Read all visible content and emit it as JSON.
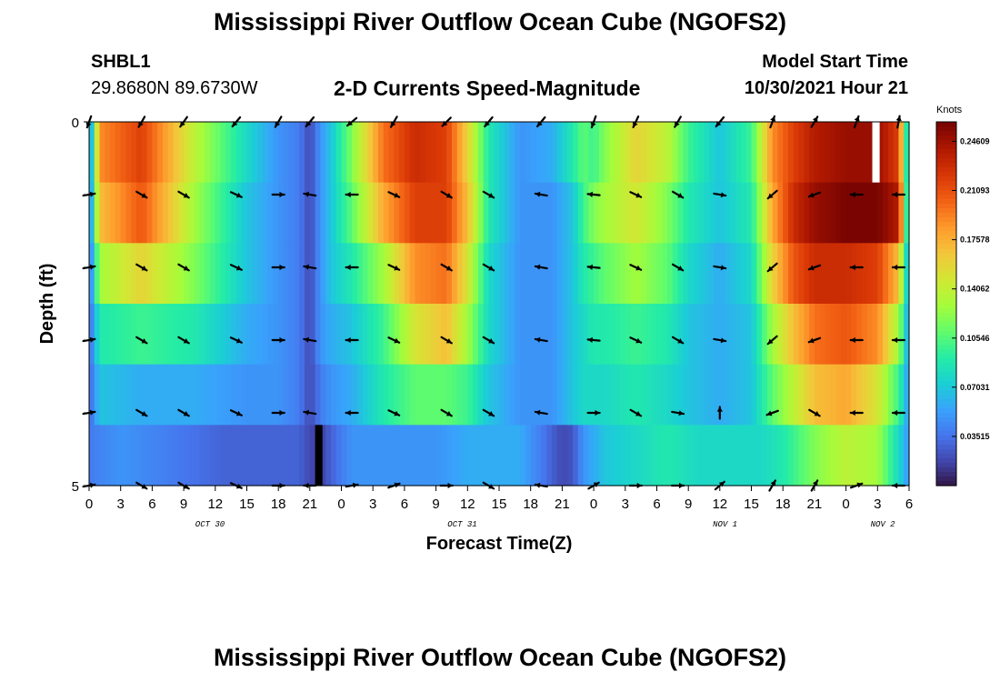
{
  "page": {
    "title": "Mississippi River Outflow Ocean Cube (NGOFS2)",
    "repeat_title": "Mississippi River Outflow Ocean Cube (NGOFS2)",
    "station": {
      "id": "SHBL1",
      "coords": "29.8680N  89.6730W"
    },
    "model_start": {
      "label": "Model Start Time",
      "value": "10/30/2021 Hour 21"
    }
  },
  "chart_data": {
    "type": "heatmap",
    "title": "2-D Currents Speed-Magnitude",
    "xlabel": "Forecast Time(Z)",
    "ylabel": "Depth (ft)",
    "y_tick_labels": [
      "0",
      "5"
    ],
    "ylim": [
      0,
      5
    ],
    "x_tick_labels": [
      "0",
      "3",
      "6",
      "9",
      "12",
      "15",
      "18",
      "21",
      "0",
      "3",
      "6",
      "9",
      "12",
      "15",
      "18",
      "21",
      "0",
      "3",
      "6",
      "9",
      "12",
      "15",
      "18",
      "21",
      "0",
      "3",
      "6"
    ],
    "x_range_hours": [
      0,
      78
    ],
    "day_labels": [
      "OCT 30",
      "OCT 31",
      "NOV 1",
      "NOV 2"
    ],
    "day_label_hours": [
      11.5,
      35.5,
      60.5,
      75.5
    ],
    "colorbar": {
      "unit": "Knots",
      "tick_labels": [
        "0.24609",
        "0.21093",
        "0.17578",
        "0.14062",
        "0.10546",
        "0.07031",
        "0.03515"
      ],
      "tick_values": [
        0.24609,
        0.21093,
        0.17578,
        0.14062,
        0.10546,
        0.07031,
        0.03515
      ],
      "range": [
        0.0,
        0.26
      ]
    },
    "depth_layers": 5,
    "speed_keyframes_hours": [
      0,
      1,
      5,
      10,
      15,
      18,
      20,
      21,
      22,
      23,
      25,
      28,
      31,
      34,
      36,
      38,
      41,
      44,
      46,
      47,
      48,
      49,
      52,
      55,
      57,
      60,
      63,
      65,
      67,
      69,
      72,
      75,
      77,
      78
    ],
    "speed_layers": [
      [
        0.03,
        0.19,
        0.22,
        0.14,
        0.08,
        0.05,
        0.04,
        0.02,
        0.05,
        0.07,
        0.12,
        0.2,
        0.23,
        0.22,
        0.16,
        0.09,
        0.05,
        0.06,
        0.09,
        0.11,
        0.1,
        0.12,
        0.16,
        0.14,
        0.1,
        0.07,
        0.1,
        0.19,
        0.22,
        0.24,
        0.25,
        0.25,
        0.22,
        0.05
      ],
      [
        0.03,
        0.17,
        0.21,
        0.13,
        0.07,
        0.05,
        0.04,
        0.02,
        0.05,
        0.07,
        0.11,
        0.18,
        0.22,
        0.22,
        0.17,
        0.09,
        0.05,
        0.05,
        0.07,
        0.1,
        0.12,
        0.13,
        0.15,
        0.12,
        0.09,
        0.07,
        0.09,
        0.18,
        0.23,
        0.25,
        0.26,
        0.26,
        0.24,
        0.05
      ],
      [
        0.03,
        0.13,
        0.16,
        0.12,
        0.07,
        0.05,
        0.04,
        0.02,
        0.05,
        0.07,
        0.09,
        0.13,
        0.19,
        0.2,
        0.15,
        0.08,
        0.05,
        0.05,
        0.07,
        0.09,
        0.1,
        0.11,
        0.13,
        0.11,
        0.08,
        0.06,
        0.08,
        0.16,
        0.21,
        0.23,
        0.23,
        0.22,
        0.17,
        0.05
      ],
      [
        0.03,
        0.09,
        0.1,
        0.09,
        0.06,
        0.05,
        0.04,
        0.02,
        0.05,
        0.06,
        0.07,
        0.1,
        0.15,
        0.17,
        0.13,
        0.08,
        0.05,
        0.05,
        0.07,
        0.08,
        0.09,
        0.09,
        0.1,
        0.09,
        0.07,
        0.06,
        0.07,
        0.13,
        0.17,
        0.2,
        0.21,
        0.19,
        0.13,
        0.05
      ],
      [
        0.03,
        0.07,
        0.06,
        0.06,
        0.05,
        0.05,
        0.04,
        0.02,
        0.04,
        0.05,
        0.06,
        0.09,
        0.11,
        0.11,
        0.1,
        0.07,
        0.05,
        0.05,
        0.07,
        0.08,
        0.08,
        0.08,
        0.09,
        0.08,
        0.07,
        0.06,
        0.07,
        0.11,
        0.14,
        0.17,
        0.18,
        0.15,
        0.1,
        0.05
      ]
    ],
    "bottom_layer_keyframes_hours": [
      0,
      3,
      8,
      13,
      18,
      20,
      21,
      22,
      23,
      25,
      30,
      33,
      36,
      38,
      41,
      44,
      45,
      46,
      47,
      48,
      49,
      52,
      55,
      58,
      62,
      64,
      66,
      69,
      72,
      75,
      77,
      78
    ],
    "bottom_layer_speeds": [
      0.04,
      0.05,
      0.04,
      0.03,
      0.03,
      0.03,
      0.02,
      0.015,
      0.03,
      0.05,
      0.05,
      0.05,
      0.06,
      0.06,
      0.06,
      0.03,
      0.02,
      0.025,
      0.05,
      0.06,
      0.07,
      0.08,
      0.09,
      0.08,
      0.08,
      0.08,
      0.09,
      0.12,
      0.14,
      0.13,
      0.08,
      0.05
    ],
    "vectors": {
      "hours": [
        0,
        5,
        9,
        14,
        18,
        21,
        25,
        29,
        34,
        38,
        43,
        48,
        52,
        56,
        60,
        65,
        69,
        73,
        77
      ],
      "row_depths": [
        0,
        1,
        2,
        3,
        4,
        5
      ],
      "directions_deg": [
        [
          110,
          120,
          125,
          130,
          120,
          130,
          140,
          120,
          135,
          130,
          130,
          110,
          115,
          120,
          130,
          290,
          300,
          290,
          280
        ],
        [
          -10,
          30,
          30,
          25,
          0,
          190,
          180,
          25,
          30,
          30,
          190,
          185,
          25,
          30,
          10,
          140,
          160,
          180,
          180
        ],
        [
          -10,
          30,
          30,
          25,
          0,
          190,
          180,
          25,
          30,
          30,
          190,
          185,
          25,
          30,
          10,
          140,
          160,
          180,
          180
        ],
        [
          -10,
          30,
          30,
          25,
          0,
          190,
          180,
          25,
          30,
          30,
          190,
          185,
          25,
          30,
          10,
          140,
          160,
          180,
          180
        ],
        [
          -10,
          30,
          30,
          25,
          0,
          190,
          180,
          25,
          30,
          30,
          190,
          0,
          30,
          10,
          -90,
          160,
          30,
          180,
          180
        ],
        [
          -10,
          30,
          30,
          25,
          0,
          180,
          350,
          -20,
          0,
          30,
          190,
          -30,
          0,
          0,
          -40,
          -60,
          -60,
          -20,
          180
        ]
      ],
      "row_offsets": [
        [
          0,
          0,
          0,
          0,
          0,
          0,
          0,
          0,
          0,
          0,
          0,
          0,
          0,
          0,
          0,
          0,
          0,
          0,
          0
        ],
        [
          0,
          0,
          0,
          0,
          0,
          0,
          0,
          0,
          0,
          0,
          0,
          0,
          0,
          0,
          0,
          0,
          0,
          0,
          0
        ]
      ]
    },
    "data_gaps": [
      {
        "layer": 0,
        "hour": 74.5,
        "width_hours": 0.7,
        "color": "#ffffff"
      },
      {
        "layer": 5,
        "hour": 21.5,
        "width_hours": 0.7,
        "color": "#000000"
      }
    ],
    "colormap": [
      "#30123b",
      "#4145ab",
      "#4675ed",
      "#39a2fc",
      "#1bcfd4",
      "#24eca6",
      "#61fc6c",
      "#a4fc3b",
      "#d1e834",
      "#f3c63a",
      "#fe9b2d",
      "#f36315",
      "#d93806",
      "#b11901",
      "#7a0402"
    ]
  }
}
